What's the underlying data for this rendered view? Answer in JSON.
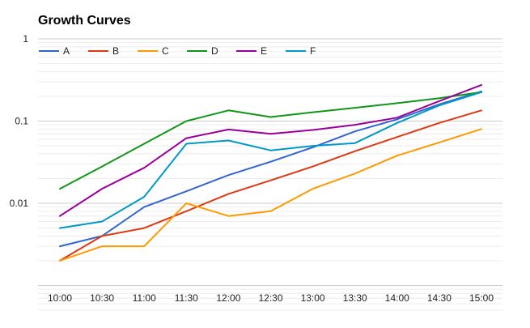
{
  "chart_data": {
    "type": "line",
    "title": "Growth Curves",
    "xlabel": "",
    "ylabel": "",
    "y_scale": "log",
    "ylim": [
      0.0005,
      1
    ],
    "y_ticks": [
      {
        "value": 1,
        "label": "1"
      },
      {
        "value": 0.1,
        "label": "0.1"
      },
      {
        "value": 0.01,
        "label": "0.01"
      }
    ],
    "grid": true,
    "legend": "top-left",
    "categories": [
      "10:00",
      "10:30",
      "11:00",
      "11:30",
      "12:00",
      "12:30",
      "13:00",
      "13:30",
      "14:00",
      "14:30",
      "15:00"
    ],
    "series": [
      {
        "name": "A",
        "color": "#3366cc",
        "values": [
          0.003,
          0.004,
          0.009,
          0.014,
          0.022,
          0.032,
          0.048,
          0.075,
          0.105,
          0.16,
          0.23
        ]
      },
      {
        "name": "B",
        "color": "#dc3912",
        "values": [
          0.002,
          0.004,
          0.005,
          0.008,
          0.013,
          0.019,
          0.028,
          0.043,
          0.064,
          0.095,
          0.135
        ]
      },
      {
        "name": "C",
        "color": "#ff9900",
        "values": [
          0.002,
          0.003,
          0.003,
          0.01,
          0.007,
          0.008,
          0.015,
          0.023,
          0.038,
          0.055,
          0.08
        ]
      },
      {
        "name": "D",
        "color": "#109618",
        "values": [
          0.015,
          0.028,
          0.053,
          0.1,
          0.135,
          0.112,
          0.128,
          0.145,
          0.165,
          0.19,
          0.225
        ]
      },
      {
        "name": "E",
        "color": "#990099",
        "values": [
          0.007,
          0.015,
          0.027,
          0.062,
          0.079,
          0.07,
          0.078,
          0.09,
          0.11,
          0.175,
          0.275
        ]
      },
      {
        "name": "F",
        "color": "#0099c6",
        "values": [
          0.005,
          0.006,
          0.012,
          0.053,
          0.058,
          0.044,
          0.05,
          0.054,
          0.095,
          0.155,
          0.225
        ]
      }
    ]
  }
}
